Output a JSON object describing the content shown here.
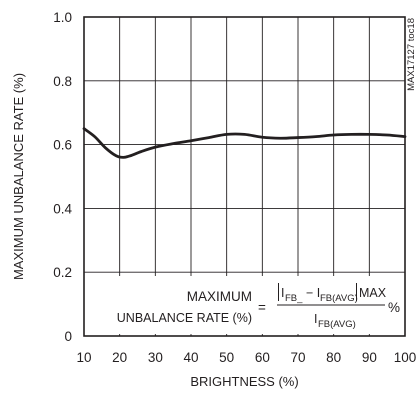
{
  "chart_data": {
    "type": "line",
    "xlabel": "BRIGHTNESS (%)",
    "ylabel": "MAXIMUM UNBALANCE RATE (%)",
    "xlim": [
      10,
      100
    ],
    "ylim": [
      0,
      1.0
    ],
    "x_ticks": [
      "10",
      "20",
      "30",
      "40",
      "50",
      "60",
      "70",
      "80",
      "90",
      "100"
    ],
    "y_ticks": [
      "0",
      "0.2",
      "0.4",
      "0.6",
      "0.8",
      "1.0"
    ],
    "grid": true,
    "series": [
      {
        "x": [
          10,
          13,
          16,
          19,
          21,
          23,
          26,
          30,
          35,
          40,
          45,
          50,
          55,
          60,
          65,
          70,
          75,
          80,
          85,
          90,
          95,
          100
        ],
        "y": [
          0.65,
          0.625,
          0.59,
          0.565,
          0.56,
          0.565,
          0.578,
          0.592,
          0.603,
          0.612,
          0.622,
          0.632,
          0.632,
          0.623,
          0.62,
          0.622,
          0.625,
          0.63,
          0.632,
          0.632,
          0.63,
          0.625
        ]
      }
    ],
    "code": "MAX17127 toc18",
    "annotation": {
      "lhs_line1": "MAXIMUM",
      "lhs_line2": "UNBALANCE RATE (%)",
      "equals": "=",
      "num_i1": "I",
      "num_sub1": "FB_",
      "num_minus": "− I",
      "num_sub2": "FB(AVG)",
      "num_max": "MAX",
      "den_i": "I",
      "den_sub": "FB(AVG)",
      "percent": "%"
    }
  }
}
